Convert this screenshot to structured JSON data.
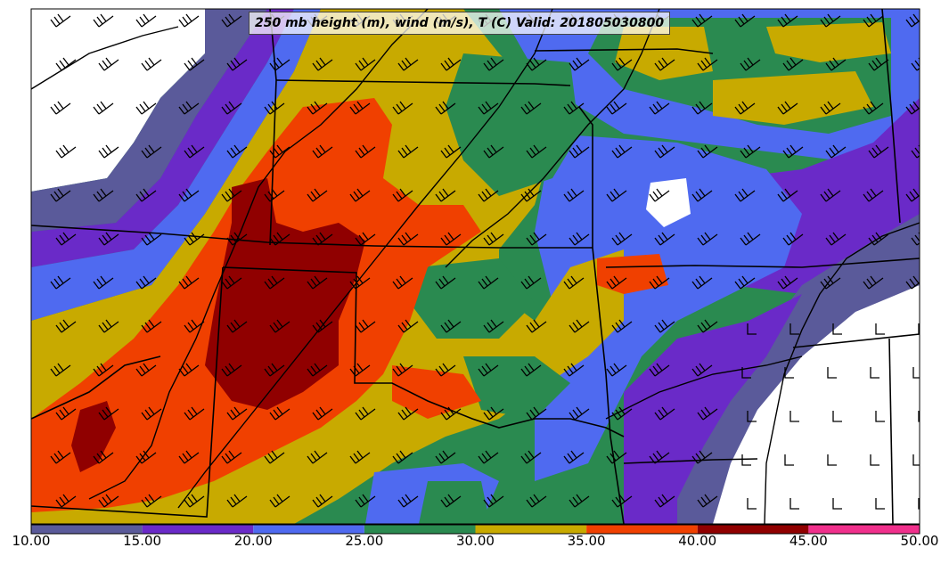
{
  "title": "250 mb height (m), wind (m/s), T (C) Valid: 201805030800",
  "colorbar": {
    "ticks": [
      "10.00",
      "15.00",
      "20.00",
      "25.00",
      "30.00",
      "35.00",
      "40.00",
      "45.00",
      "50.00"
    ],
    "bins": [
      {
        "from": 10,
        "to": 15,
        "color": "#5a5a9a"
      },
      {
        "from": 15,
        "to": 20,
        "color": "#6a2ac8"
      },
      {
        "from": 20,
        "to": 25,
        "color": "#4f6af0"
      },
      {
        "from": 25,
        "to": 30,
        "color": "#2a8a50"
      },
      {
        "from": 30,
        "to": 35,
        "color": "#c8aa00"
      },
      {
        "from": 35,
        "to": 40,
        "color": "#f04000"
      },
      {
        "from": 40,
        "to": 45,
        "color": "#900000"
      },
      {
        "from": 45,
        "to": 50,
        "color": "#f0308c"
      }
    ]
  }
}
